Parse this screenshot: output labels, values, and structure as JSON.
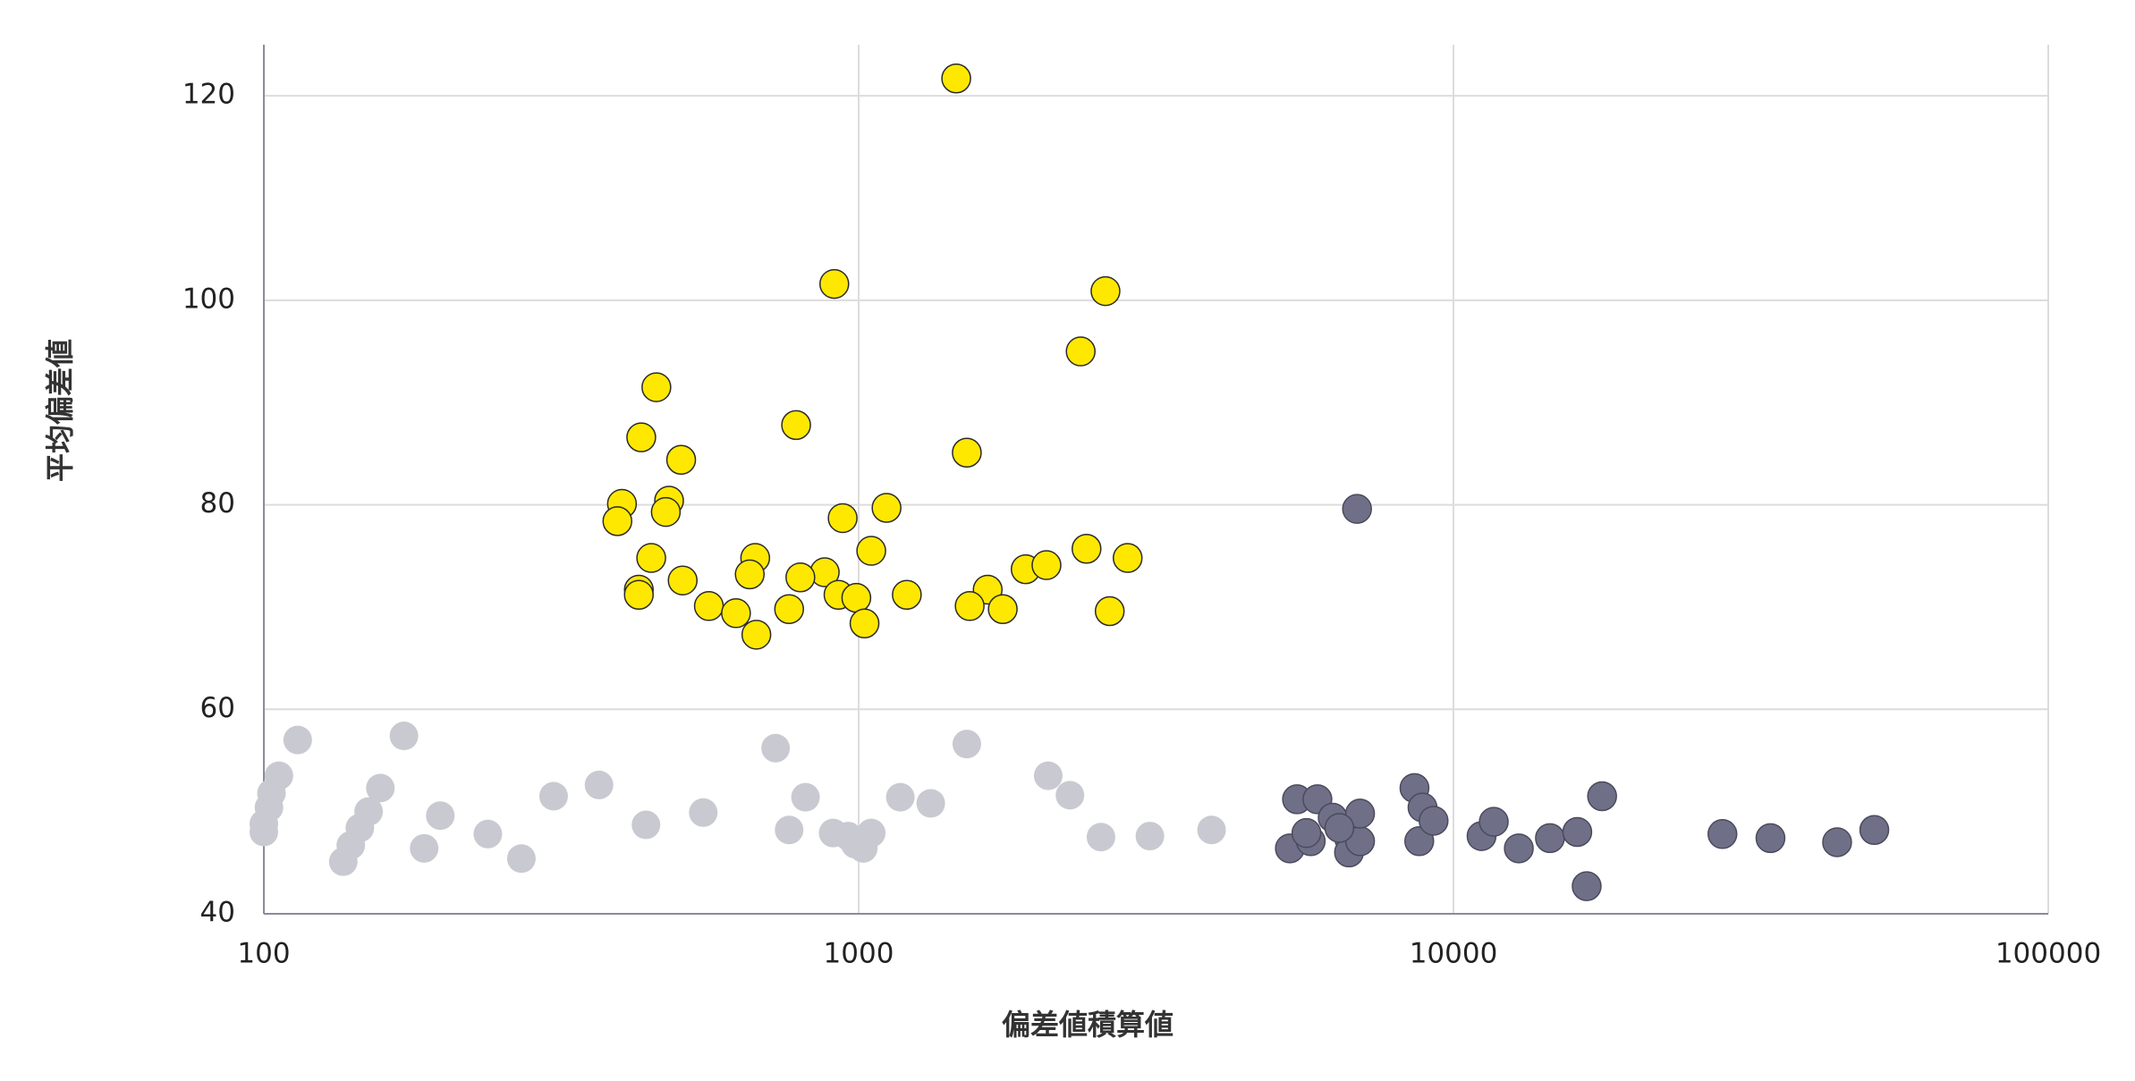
{
  "chart_data": {
    "type": "scatter",
    "x_label": "偏差値積算値",
    "y_label": "平均偏差値",
    "xscale": "log",
    "xlim": [
      100,
      100000
    ],
    "xticks": [
      100,
      1000,
      10000,
      100000
    ],
    "ylim": [
      40,
      125
    ],
    "yticks": [
      40,
      60,
      80,
      100,
      120
    ],
    "grid": true,
    "series": [
      {
        "color": "#c9c9d1",
        "edgecolor": null,
        "x": [
          100,
          100,
          102,
          103,
          106,
          114,
          136,
          140,
          145,
          150,
          157,
          172,
          186,
          198,
          238,
          271,
          307,
          366,
          439,
          548,
          725,
          764,
          814,
          906,
          960,
          987,
          1018,
          1050,
          1175,
          1322,
          1520,
          2083,
          2266,
          2555,
          3088,
          3920
        ],
        "values": [
          48,
          48.8,
          50.4,
          51.8,
          53.5,
          57,
          45.1,
          46.7,
          48.4,
          50,
          52.3,
          57.4,
          46.4,
          49.6,
          47.8,
          45.4,
          51.5,
          52.6,
          48.7,
          49.9,
          56.2,
          48.2,
          51.4,
          47.9,
          47.6,
          46.8,
          46.4,
          47.9,
          51.4,
          50.8,
          56.6,
          53.5,
          51.6,
          47.5,
          47.6,
          48.2
        ]
      },
      {
        "color": "#ffe800",
        "edgecolor": "#2a2a2a",
        "x": [
          1459,
          910,
          2600,
          2362,
          457,
          431,
          785,
          503,
          1520,
          400,
          480,
          474,
          393,
          1114,
          940,
          448,
          670,
          1050,
          2416,
          2833,
          1909,
          2069,
          877,
          656,
          506,
          427,
          427,
          798,
          1648,
          925,
          991,
          1205,
          560,
          1537,
          1747,
          2643,
          764,
          622,
          1023,
          673
        ],
        "values": [
          121.7,
          101.6,
          100.9,
          95,
          91.5,
          86.6,
          87.8,
          84.4,
          85.1,
          80.1,
          80.4,
          79.3,
          78.4,
          79.7,
          78.7,
          74.8,
          74.8,
          75.5,
          75.7,
          74.8,
          73.7,
          74.1,
          73.4,
          73.2,
          72.6,
          71.7,
          71.2,
          72.9,
          71.7,
          71.2,
          70.9,
          71.2,
          70.1,
          70.1,
          69.8,
          69.6,
          69.8,
          69.4,
          68.4,
          67.3
        ]
      },
      {
        "color": "#6f6f87",
        "edgecolor": "#4a4a5e",
        "x": [
          6885,
          5458,
          5906,
          5309,
          5755,
          5660,
          6266,
          6675,
          6675,
          6966,
          6966,
          6430,
          8600,
          8760,
          8872,
          9260,
          11150,
          11690,
          12880,
          14530,
          16150,
          16750,
          17780,
          28330,
          34120,
          44160,
          51000
        ],
        "values": [
          79.6,
          51.2,
          51.2,
          46.4,
          47.1,
          47.9,
          49.4,
          47.4,
          46,
          47.1,
          49.8,
          48.4,
          52.3,
          47.1,
          50.4,
          49.1,
          47.6,
          49,
          46.4,
          47.4,
          48,
          42.7,
          51.5,
          47.8,
          47.4,
          47,
          48.2
        ]
      }
    ]
  }
}
